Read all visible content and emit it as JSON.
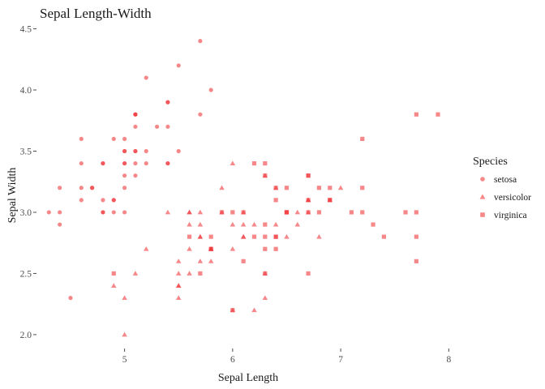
{
  "chart_data": {
    "type": "scatter",
    "title": "Sepal Length-Width",
    "xlabel": "Sepal Length",
    "ylabel": "Sepal Width",
    "xlim": [
      4.2,
      8.05
    ],
    "ylim": [
      1.9,
      4.55
    ],
    "x_ticks": [
      5,
      6,
      7,
      8
    ],
    "x_tick_labels": [
      "5",
      "6",
      "7",
      "8"
    ],
    "y_ticks": [
      2.0,
      2.5,
      3.0,
      3.5,
      4.0,
      4.5
    ],
    "y_tick_labels": [
      "2.0",
      "2.5",
      "3.0",
      "3.5",
      "4.0",
      "4.5"
    ],
    "grid": false,
    "legend": {
      "title": "Species",
      "placement": "right"
    },
    "color": "#f0383c",
    "series": [
      {
        "name": "setosa",
        "shape": "circle",
        "points": [
          [
            5.1,
            3.5
          ],
          [
            4.9,
            3.0
          ],
          [
            4.7,
            3.2
          ],
          [
            4.6,
            3.1
          ],
          [
            5.0,
            3.6
          ],
          [
            5.4,
            3.9
          ],
          [
            4.6,
            3.4
          ],
          [
            5.0,
            3.4
          ],
          [
            4.4,
            2.9
          ],
          [
            4.9,
            3.1
          ],
          [
            5.4,
            3.7
          ],
          [
            4.8,
            3.4
          ],
          [
            4.8,
            3.0
          ],
          [
            4.3,
            3.0
          ],
          [
            5.8,
            4.0
          ],
          [
            5.7,
            4.4
          ],
          [
            5.4,
            3.9
          ],
          [
            5.1,
            3.5
          ],
          [
            5.7,
            3.8
          ],
          [
            5.1,
            3.8
          ],
          [
            5.4,
            3.4
          ],
          [
            5.1,
            3.7
          ],
          [
            4.6,
            3.6
          ],
          [
            5.1,
            3.3
          ],
          [
            4.8,
            3.4
          ],
          [
            5.0,
            3.0
          ],
          [
            5.0,
            3.4
          ],
          [
            5.2,
            3.5
          ],
          [
            5.2,
            3.4
          ],
          [
            4.7,
            3.2
          ],
          [
            4.8,
            3.1
          ],
          [
            5.4,
            3.4
          ],
          [
            5.2,
            4.1
          ],
          [
            5.5,
            4.2
          ],
          [
            4.9,
            3.1
          ],
          [
            5.0,
            3.2
          ],
          [
            5.5,
            3.5
          ],
          [
            4.9,
            3.6
          ],
          [
            4.4,
            3.0
          ],
          [
            5.1,
            3.4
          ],
          [
            5.0,
            3.5
          ],
          [
            4.5,
            2.3
          ],
          [
            4.4,
            3.2
          ],
          [
            5.0,
            3.5
          ],
          [
            5.1,
            3.8
          ],
          [
            4.8,
            3.0
          ],
          [
            5.1,
            3.8
          ],
          [
            4.6,
            3.2
          ],
          [
            5.3,
            3.7
          ],
          [
            5.0,
            3.3
          ]
        ]
      },
      {
        "name": "versicolor",
        "shape": "triangle",
        "points": [
          [
            7.0,
            3.2
          ],
          [
            6.4,
            3.2
          ],
          [
            6.9,
            3.1
          ],
          [
            5.5,
            2.3
          ],
          [
            6.5,
            2.8
          ],
          [
            5.7,
            2.8
          ],
          [
            6.3,
            3.3
          ],
          [
            4.9,
            2.4
          ],
          [
            6.6,
            2.9
          ],
          [
            5.2,
            2.7
          ],
          [
            5.0,
            2.0
          ],
          [
            5.9,
            3.0
          ],
          [
            6.0,
            2.2
          ],
          [
            6.1,
            2.9
          ],
          [
            5.6,
            2.9
          ],
          [
            6.7,
            3.1
          ],
          [
            5.6,
            3.0
          ],
          [
            5.8,
            2.7
          ],
          [
            6.2,
            2.2
          ],
          [
            5.6,
            2.5
          ],
          [
            5.9,
            3.2
          ],
          [
            6.1,
            2.8
          ],
          [
            6.3,
            2.5
          ],
          [
            6.1,
            2.8
          ],
          [
            6.4,
            2.9
          ],
          [
            6.6,
            3.0
          ],
          [
            6.8,
            2.8
          ],
          [
            6.7,
            3.0
          ],
          [
            6.0,
            2.9
          ],
          [
            5.7,
            2.6
          ],
          [
            5.5,
            2.4
          ],
          [
            5.5,
            2.4
          ],
          [
            5.8,
            2.7
          ],
          [
            6.0,
            2.7
          ],
          [
            5.4,
            3.0
          ],
          [
            6.0,
            3.4
          ],
          [
            6.7,
            3.1
          ],
          [
            6.3,
            2.3
          ],
          [
            5.6,
            3.0
          ],
          [
            5.5,
            2.5
          ],
          [
            5.5,
            2.6
          ],
          [
            6.1,
            3.0
          ],
          [
            5.8,
            2.6
          ],
          [
            5.0,
            2.3
          ],
          [
            5.6,
            2.7
          ],
          [
            5.7,
            3.0
          ],
          [
            5.7,
            2.9
          ],
          [
            6.2,
            2.9
          ],
          [
            5.1,
            2.5
          ],
          [
            5.7,
            2.8
          ]
        ]
      },
      {
        "name": "virginica",
        "shape": "square",
        "points": [
          [
            6.3,
            3.3
          ],
          [
            5.8,
            2.7
          ],
          [
            7.1,
            3.0
          ],
          [
            6.3,
            2.9
          ],
          [
            6.5,
            3.0
          ],
          [
            7.6,
            3.0
          ],
          [
            4.9,
            2.5
          ],
          [
            7.3,
            2.9
          ],
          [
            6.7,
            2.5
          ],
          [
            7.2,
            3.6
          ],
          [
            6.5,
            3.2
          ],
          [
            6.4,
            2.7
          ],
          [
            6.8,
            3.0
          ],
          [
            5.7,
            2.5
          ],
          [
            5.8,
            2.8
          ],
          [
            6.4,
            3.2
          ],
          [
            6.5,
            3.0
          ],
          [
            7.7,
            3.8
          ],
          [
            7.7,
            2.6
          ],
          [
            6.0,
            2.2
          ],
          [
            6.9,
            3.2
          ],
          [
            5.6,
            2.8
          ],
          [
            7.7,
            2.8
          ],
          [
            6.3,
            2.7
          ],
          [
            6.7,
            3.3
          ],
          [
            7.2,
            3.2
          ],
          [
            6.2,
            2.8
          ],
          [
            6.1,
            3.0
          ],
          [
            6.4,
            2.8
          ],
          [
            7.2,
            3.0
          ],
          [
            7.4,
            2.8
          ],
          [
            7.9,
            3.8
          ],
          [
            6.4,
            2.8
          ],
          [
            6.3,
            2.8
          ],
          [
            6.1,
            2.6
          ],
          [
            7.7,
            3.0
          ],
          [
            6.3,
            3.4
          ],
          [
            6.4,
            3.1
          ],
          [
            6.0,
            3.0
          ],
          [
            6.9,
            3.1
          ],
          [
            6.7,
            3.1
          ],
          [
            6.9,
            3.1
          ],
          [
            5.8,
            2.7
          ],
          [
            6.8,
            3.2
          ],
          [
            6.7,
            3.3
          ],
          [
            6.7,
            3.0
          ],
          [
            6.3,
            2.5
          ],
          [
            6.5,
            3.0
          ],
          [
            6.2,
            3.4
          ],
          [
            5.9,
            3.0
          ]
        ]
      }
    ]
  }
}
